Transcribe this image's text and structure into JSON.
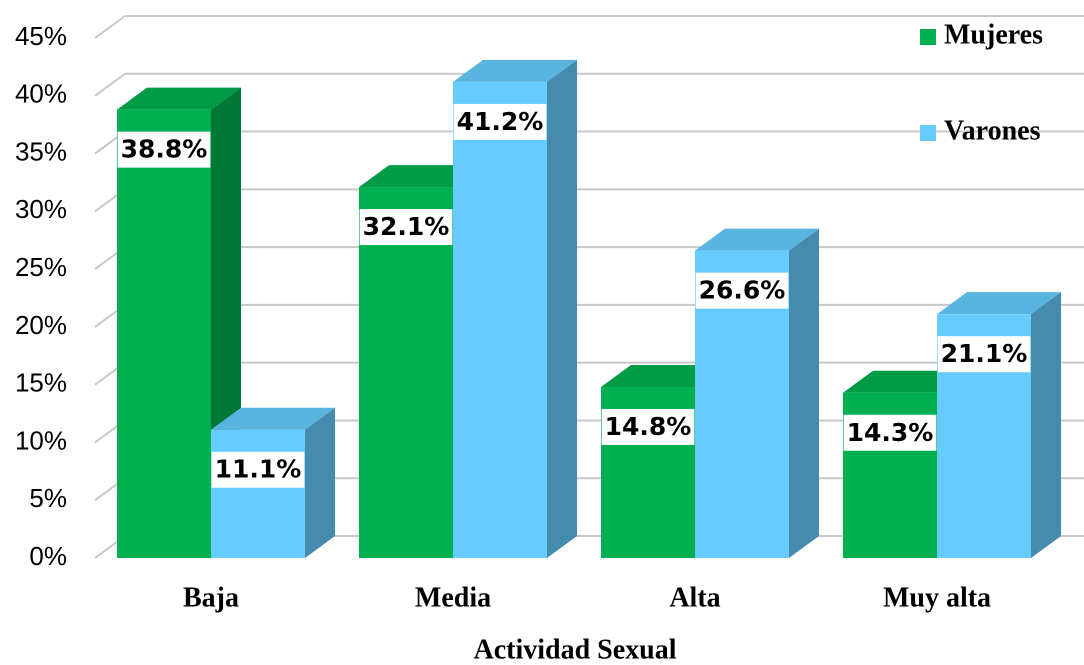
{
  "chart_data": {
    "type": "bar3d",
    "x_label": "Actividad Sexual",
    "categories": [
      "Baja",
      "Media",
      "Alta",
      "Muy alta"
    ],
    "series": [
      {
        "name": "Mujeres",
        "color": "#00b050",
        "values": [
          38.8,
          32.1,
          14.8,
          14.3
        ],
        "value_labels": [
          "38.8%",
          "32.1%",
          "14.8%",
          "14.3%"
        ]
      },
      {
        "name": "Varones",
        "color": "#66ccff",
        "values": [
          11.1,
          41.2,
          26.6,
          21.1
        ],
        "value_labels": [
          "11.1%",
          "41.2%",
          "26.6%",
          "21.1%"
        ]
      }
    ],
    "ylim": [
      0,
      45
    ],
    "yticks": [
      {
        "value": 0,
        "label": "0%"
      },
      {
        "value": 5,
        "label": "5%"
      },
      {
        "value": 10,
        "label": "10%"
      },
      {
        "value": 15,
        "label": "15%"
      },
      {
        "value": 20,
        "label": "20%"
      },
      {
        "value": 25,
        "label": "25%"
      },
      {
        "value": 30,
        "label": "30%"
      },
      {
        "value": 35,
        "label": "35%"
      },
      {
        "value": 40,
        "label": "40%"
      },
      {
        "value": 45,
        "label": "45%"
      }
    ],
    "grid": true,
    "legend": "top-right"
  }
}
